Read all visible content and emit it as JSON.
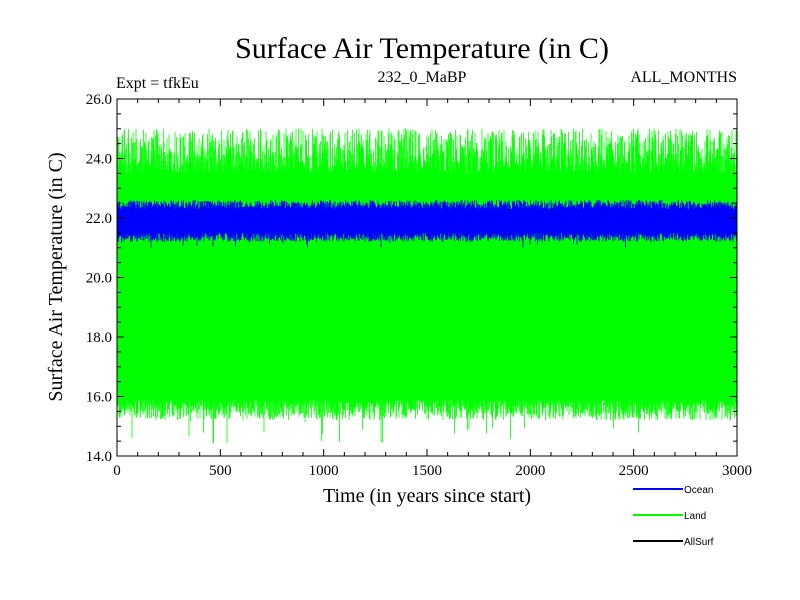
{
  "chart_data": {
    "type": "line",
    "title": "Surface Air Temperature (in C)",
    "header_left": "Expt = tfkEu",
    "header_center": "232_0_MaBP",
    "header_right": "ALL_MONTHS",
    "xlabel": "Time (in years since start)",
    "ylabel": "Surface Air Temperature (in C)",
    "xlim": [
      0,
      3000
    ],
    "ylim": [
      14.0,
      26.0
    ],
    "x_ticks": [
      0,
      500,
      1000,
      1500,
      2000,
      2500,
      3000
    ],
    "y_ticks": [
      "14.0",
      "16.0",
      "18.0",
      "20.0",
      "22.0",
      "24.0",
      "26.0"
    ],
    "grid": false,
    "legend_position": "bottom-right",
    "series": [
      {
        "name": "Land",
        "color": "#00ff00",
        "x_range": [
          0,
          3000
        ],
        "envelope_low": [
          15.2,
          15.9
        ],
        "envelope_high": [
          23.5,
          25.0
        ],
        "min": 14.4,
        "max": 25.0
      },
      {
        "name": "Ocean",
        "color": "#0000ff",
        "x_range": [
          0,
          3000
        ],
        "envelope_low": [
          21.2,
          21.5
        ],
        "envelope_high": [
          22.3,
          22.6
        ],
        "min": 21.0,
        "max": 22.6
      },
      {
        "name": "AllSurf",
        "color": "#000000",
        "x_range": [
          0,
          3000
        ],
        "envelope_low": [],
        "envelope_high": []
      }
    ]
  }
}
